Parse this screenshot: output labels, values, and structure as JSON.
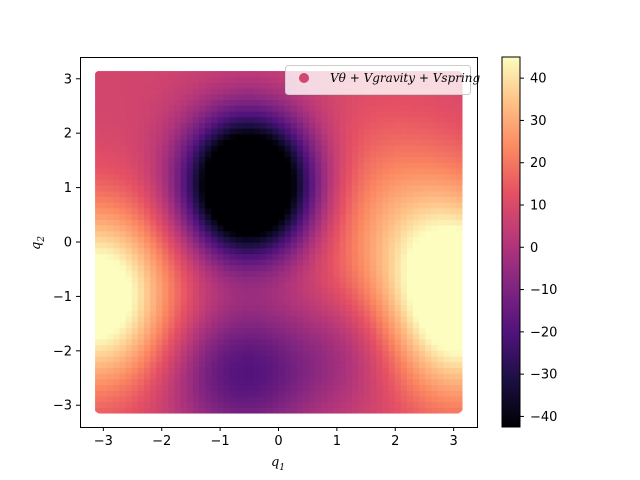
{
  "chart_data": {
    "type": "heatmap",
    "xlabel": "q",
    "xlabel_sub": "1",
    "ylabel": "q",
    "ylabel_sub": "2",
    "xlim": [
      -3.4,
      3.4
    ],
    "ylim": [
      -3.4,
      3.4
    ],
    "x_ticks": [
      -3,
      -2,
      -1,
      0,
      1,
      2,
      3
    ],
    "y_ticks": [
      -3,
      -2,
      -1,
      0,
      1,
      2,
      3
    ],
    "domain": [
      -3.14159,
      3.14159
    ],
    "colormap": "magma",
    "colorbar": {
      "vmin": -42.5,
      "vmax": 45,
      "ticks": [
        -40,
        -30,
        -20,
        -10,
        0,
        10,
        20,
        30,
        40
      ]
    },
    "legend": {
      "label": "Vθ + Vgravity + Vspring",
      "marker_color": "#d0476f",
      "placement": "top-right"
    },
    "features": [
      {
        "kind": "minimum",
        "q1": -0.5,
        "q2": 1.0,
        "value": -42
      },
      {
        "kind": "maximum",
        "q1": 3.0,
        "q2": -1.0,
        "value": 45
      },
      {
        "kind": "maximum",
        "q1": -3.0,
        "q2": -1.0,
        "value": 42
      }
    ]
  }
}
